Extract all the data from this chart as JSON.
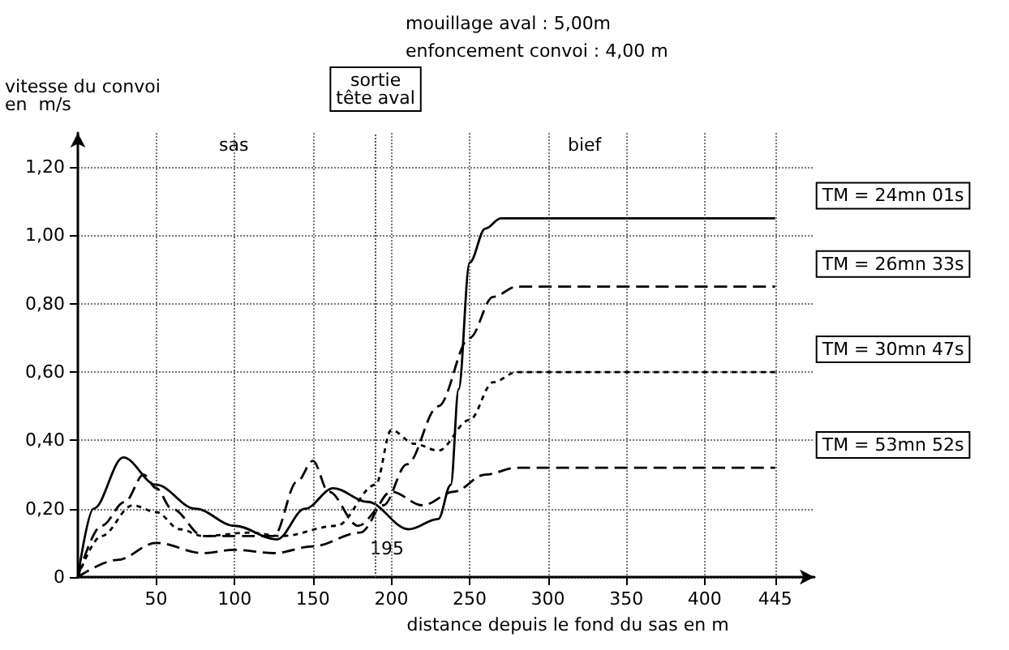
{
  "chart_data": {
    "type": "line",
    "title": "mouillage aval : 5,00m",
    "subtitle": "enfoncement convoi : 4,00 m",
    "xlabel": "distance depuis le fond du sas en m",
    "ylabel": "vitesse du convoi\nen  m/s",
    "xlim": [
      0,
      470
    ],
    "xticks": [
      50,
      100,
      150,
      200,
      250,
      300,
      350,
      400,
      445
    ],
    "ylim": [
      0,
      1.3
    ],
    "yticks": [
      {
        "value": 0,
        "label": "0"
      },
      {
        "value": 0.2,
        "label": "0,20"
      },
      {
        "value": 0.4,
        "label": "0,40"
      },
      {
        "value": 0.6,
        "label": "0,60"
      },
      {
        "value": 0.8,
        "label": "0,80"
      },
      {
        "value": 1,
        "label": "1,00"
      },
      {
        "value": 1.2,
        "label": "1,20"
      }
    ],
    "grid": true,
    "legend": false,
    "marker": "none",
    "series": [
      {
        "name": "TM = 24mn 01s",
        "color": "#000000",
        "line_style": "solid",
        "x": [
          0,
          10,
          29,
          50,
          75,
          100,
          127,
          145,
          163,
          185,
          211,
          230,
          238,
          243,
          250,
          260,
          270,
          300,
          445
        ],
        "values": [
          0,
          0.2,
          0.35,
          0.27,
          0.2,
          0.15,
          0.11,
          0.2,
          0.26,
          0.22,
          0.14,
          0.17,
          0.27,
          0.55,
          0.92,
          1.02,
          1.05,
          1.05,
          1.05
        ]
      },
      {
        "name": "TM = 26mn 33s",
        "color": "#000000",
        "line_style": "dashed",
        "x": [
          0,
          15,
          30,
          42,
          50,
          60,
          80,
          100,
          125,
          140,
          150,
          160,
          179,
          195,
          210,
          230,
          250,
          265,
          280,
          445
        ],
        "values": [
          0,
          0.15,
          0.22,
          0.3,
          0.26,
          0.2,
          0.12,
          0.12,
          0.12,
          0.28,
          0.34,
          0.25,
          0.15,
          0.21,
          0.33,
          0.5,
          0.7,
          0.82,
          0.85,
          0.85
        ]
      },
      {
        "name": "TM = 30mn 47s",
        "color": "#000000",
        "line_style": "dotted",
        "x": [
          0,
          15,
          35,
          50,
          65,
          80,
          110,
          130,
          165,
          190,
          200,
          215,
          230,
          250,
          265,
          280,
          445
        ],
        "values": [
          0,
          0.12,
          0.21,
          0.19,
          0.14,
          0.12,
          0.13,
          0.12,
          0.15,
          0.27,
          0.43,
          0.39,
          0.37,
          0.46,
          0.57,
          0.6,
          0.6
        ]
      },
      {
        "name": "TM = 53mn 52s",
        "color": "#000000",
        "line_style": "dashed",
        "x": [
          0,
          25,
          50,
          80,
          100,
          125,
          150,
          180,
          200,
          220,
          240,
          260,
          280,
          445
        ],
        "values": [
          0,
          0.05,
          0.1,
          0.07,
          0.08,
          0.07,
          0.09,
          0.13,
          0.25,
          0.21,
          0.25,
          0.3,
          0.32,
          0.32
        ]
      }
    ],
    "ref_lines": [
      {
        "axis": "x",
        "value": 190,
        "label": "sortie\ntête aval"
      }
    ],
    "annotations": [
      "sas",
      "bief",
      "195"
    ]
  }
}
